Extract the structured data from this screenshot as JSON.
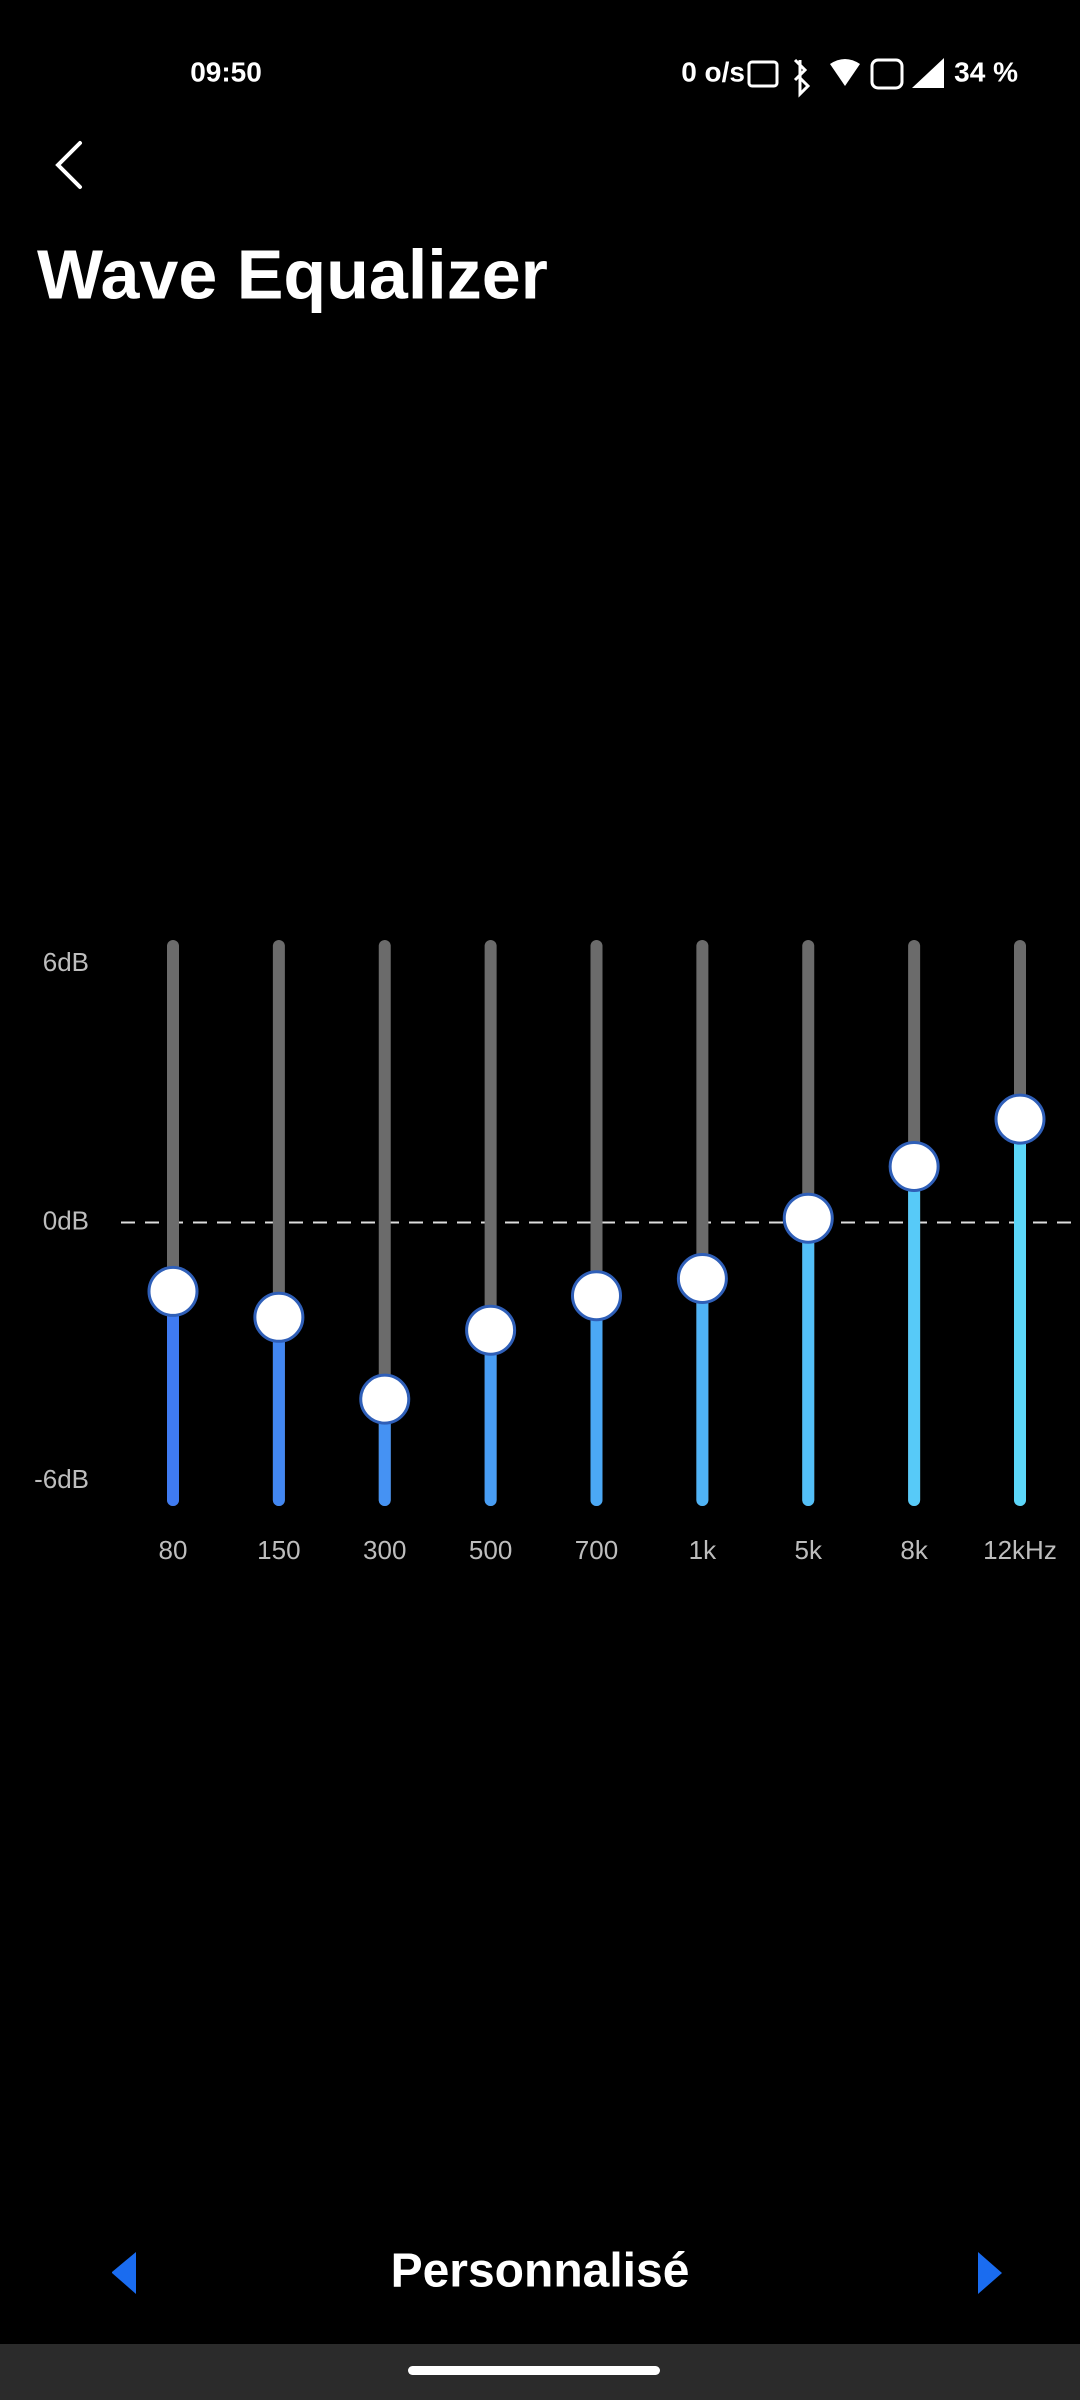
{
  "status_bar": {
    "time": "09:50",
    "speed": "0 o/s",
    "battery": "34 %"
  },
  "title": "Wave Equalizer",
  "equalizer": {
    "ylim": [
      -6,
      6
    ],
    "yticks": [
      {
        "value": 6,
        "label": "6dB"
      },
      {
        "value": 0,
        "label": "0dB"
      },
      {
        "value": -6,
        "label": "-6dB"
      }
    ],
    "bands": [
      "80",
      "150",
      "300",
      "500",
      "700",
      "1k",
      "5k",
      "8k",
      "12kHz"
    ],
    "values": [
      -1.6,
      -2.2,
      -4.1,
      -2.5,
      -1.7,
      -1.3,
      0.1,
      1.3,
      2.4
    ],
    "colors": [
      "#3f7bf2",
      "#4287f2",
      "#4592f3",
      "#489df4",
      "#4ba8f5",
      "#4fb3f6",
      "#53bff7",
      "#57caf8",
      "#5bd6f9"
    ]
  },
  "preset": "Personnalisé"
}
